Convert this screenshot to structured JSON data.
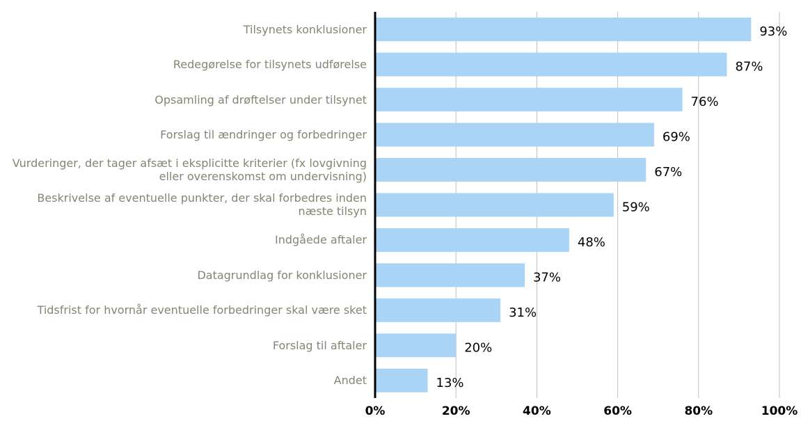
{
  "chart_data": {
    "type": "barh",
    "categories": [
      "Tilsynets konklusioner",
      "Redegørelse for tilsynets udførelse",
      "Opsamling af drøftelser under tilsynet",
      "Forslag til ændringer og forbedringer",
      "Vurderinger, der tager afsæt i eksplicitte kriterier (fx lovgivning eller overenskomst om undervisning)",
      "Beskrivelse af eventuelle punkter, der skal forbedres inden næste tilsyn",
      "Indgåede aftaler",
      "Datagrundlag for konklusioner",
      "Tidsfrist for hvornår eventuelle forbedringer skal være sket",
      "Forslag til aftaler",
      "Andet"
    ],
    "values": [
      93,
      87,
      76,
      69,
      67,
      59,
      48,
      37,
      31,
      20,
      13
    ],
    "value_labels": [
      "93%",
      "87%",
      "76%",
      "69%",
      "67%",
      "59%",
      "48%",
      "37%",
      "31%",
      "20%",
      "13%"
    ],
    "color": "#a9d4f5",
    "xlim": [
      0,
      100
    ],
    "xticks": [
      {
        "value": 0,
        "label": "0%"
      },
      {
        "value": 20,
        "label": "20%"
      },
      {
        "value": 40,
        "label": "40%"
      },
      {
        "value": 60,
        "label": "60%"
      },
      {
        "value": 80,
        "label": "80%"
      },
      {
        "value": 100,
        "label": "100%"
      }
    ],
    "grid": true
  }
}
